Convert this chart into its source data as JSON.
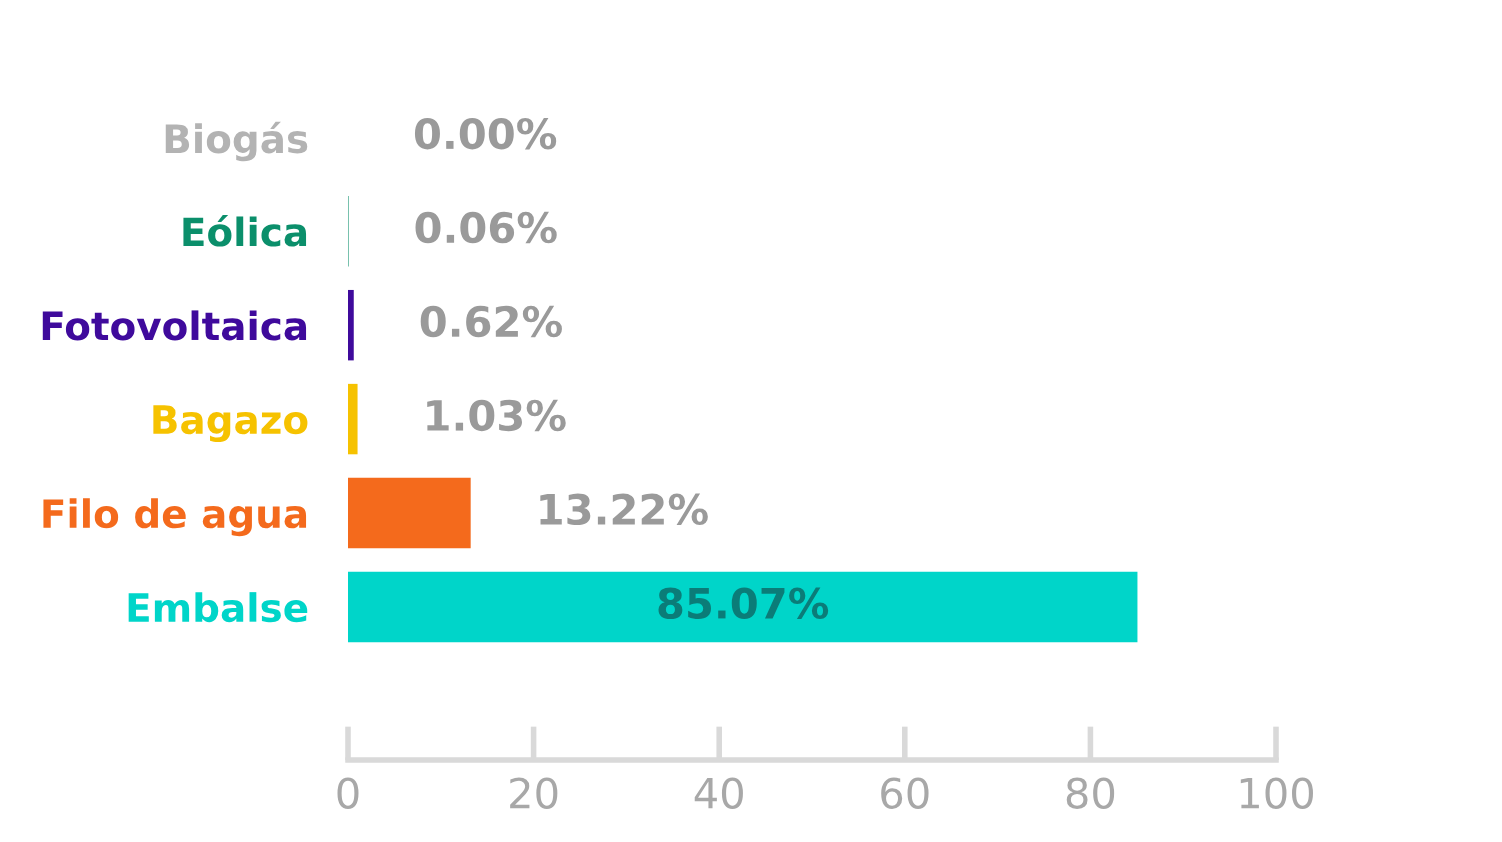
{
  "chart_data": {
    "type": "bar",
    "orientation": "horizontal",
    "categories": [
      "Biogás",
      "Eólica",
      "Fotovoltaica",
      "Bagazo",
      "Filo de agua",
      "Embalse"
    ],
    "values": [
      0.0,
      0.06,
      0.62,
      1.03,
      13.22,
      85.07
    ],
    "colors": [
      "#b3b3b3",
      "#0b8f6b",
      "#3f0a9c",
      "#f6c200",
      "#f46a1c",
      "#00d5c9"
    ],
    "value_labels": [
      "0.00%",
      "0.06%",
      "0.62%",
      "1.03%",
      "13.22%",
      "85.07%"
    ],
    "xlim": [
      0,
      100
    ],
    "xticks": [
      0,
      20,
      40,
      60,
      80,
      100
    ],
    "grid": false,
    "legend": false
  }
}
